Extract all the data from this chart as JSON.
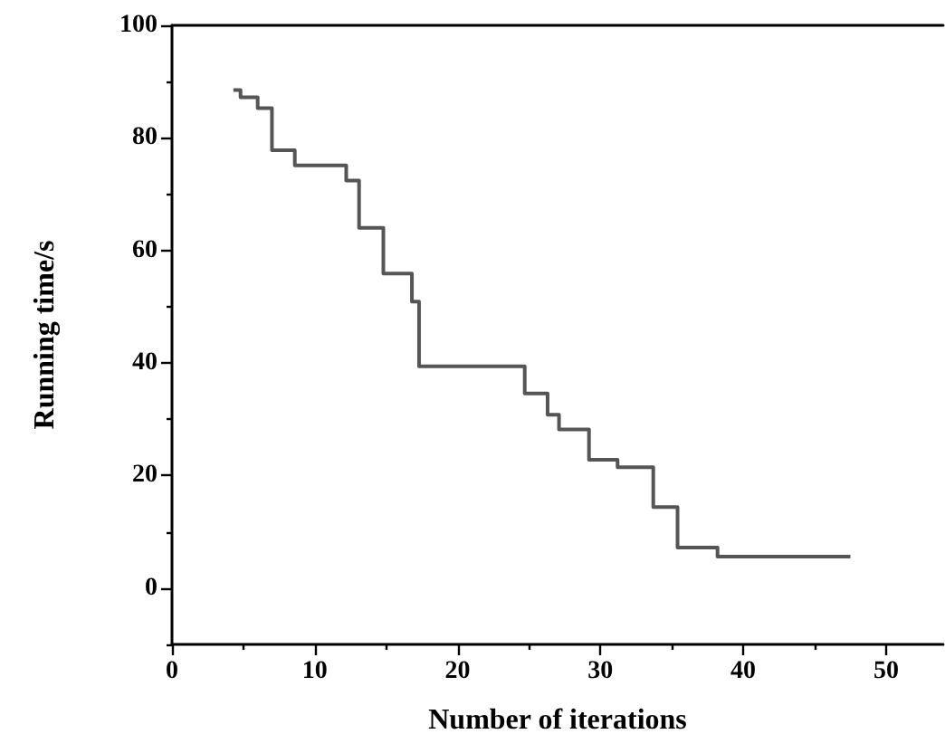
{
  "chart_data": {
    "type": "step",
    "xlabel": "Number of iterations",
    "ylabel": "Running time/s",
    "x": [
      4.3,
      4.8,
      6.0,
      7.0,
      8.6,
      12.2,
      13.1,
      14.8,
      16.8,
      17.3,
      24.7,
      26.3,
      27.1,
      29.2,
      31.2,
      33.7,
      35.4,
      38.2,
      47.5
    ],
    "values": [
      88.5,
      87.2,
      85.3,
      77.8,
      75.1,
      72.4,
      64.0,
      55.9,
      50.9,
      39.4,
      34.6,
      30.8,
      28.2,
      22.8,
      21.5,
      14.4,
      7.2,
      5.6,
      5.6
    ],
    "color": "#555555",
    "xlim": [
      0,
      54
    ],
    "xticks": [
      0,
      10,
      20,
      30,
      40,
      50
    ],
    "ylim": [
      -10,
      100
    ],
    "yticks": [
      0,
      20,
      40,
      60,
      80,
      100
    ],
    "marker": "none",
    "line_style": "solid"
  }
}
